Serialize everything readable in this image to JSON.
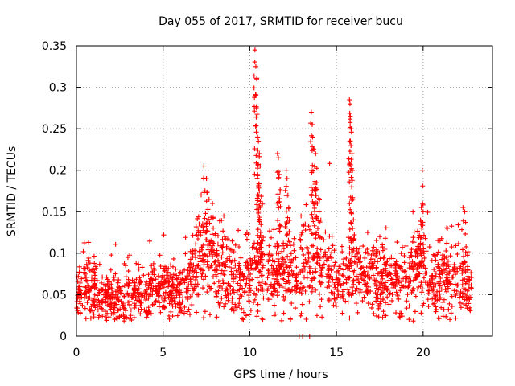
{
  "chart_data": {
    "type": "scatter",
    "title": "Day 055 of 2017, SRMTID for receiver bucu",
    "xlabel": "GPS time / hours",
    "ylabel": "SRMTID / TECUs",
    "xlim": [
      0,
      24
    ],
    "ylim": [
      0,
      0.35
    ],
    "xticks": [
      0,
      5,
      10,
      15,
      20
    ],
    "xtick_labels": [
      "0",
      "5",
      "10",
      "15",
      "20"
    ],
    "yticks": [
      0,
      0.05,
      0.1,
      0.15,
      0.2,
      0.25,
      0.3,
      0.35
    ],
    "ytick_labels": [
      "0",
      "0.05",
      "0.1",
      "0.15",
      "0.2",
      "0.25",
      "0.3",
      "0.35"
    ],
    "grid": true,
    "marker": "plus",
    "color": "#ff0000",
    "series": [
      {
        "name": "SRMTID",
        "band_profile": [
          [
            0.0,
            0.045,
            0.015
          ],
          [
            0.5,
            0.06,
            0.02
          ],
          [
            1.0,
            0.05,
            0.018
          ],
          [
            1.5,
            0.045,
            0.015
          ],
          [
            2.0,
            0.045,
            0.015
          ],
          [
            2.5,
            0.045,
            0.016
          ],
          [
            3.0,
            0.045,
            0.016
          ],
          [
            3.5,
            0.05,
            0.016
          ],
          [
            4.0,
            0.05,
            0.016
          ],
          [
            4.5,
            0.055,
            0.016
          ],
          [
            5.0,
            0.06,
            0.015
          ],
          [
            5.5,
            0.055,
            0.014
          ],
          [
            6.0,
            0.05,
            0.016
          ],
          [
            6.5,
            0.06,
            0.02
          ],
          [
            7.0,
            0.09,
            0.03
          ],
          [
            7.5,
            0.1,
            0.035
          ],
          [
            8.0,
            0.085,
            0.028
          ],
          [
            8.5,
            0.085,
            0.025
          ],
          [
            9.0,
            0.07,
            0.02
          ],
          [
            9.5,
            0.065,
            0.02
          ],
          [
            10.0,
            0.08,
            0.025
          ],
          [
            10.5,
            0.09,
            0.03
          ],
          [
            11.0,
            0.075,
            0.025
          ],
          [
            11.5,
            0.075,
            0.025
          ],
          [
            12.0,
            0.08,
            0.025
          ],
          [
            12.5,
            0.07,
            0.025
          ],
          [
            13.0,
            0.08,
            0.03
          ],
          [
            13.5,
            0.095,
            0.035
          ],
          [
            14.0,
            0.09,
            0.03
          ],
          [
            14.5,
            0.08,
            0.025
          ],
          [
            15.0,
            0.065,
            0.02
          ],
          [
            15.5,
            0.07,
            0.022
          ],
          [
            16.0,
            0.075,
            0.025
          ],
          [
            16.5,
            0.07,
            0.022
          ],
          [
            17.0,
            0.075,
            0.022
          ],
          [
            17.5,
            0.065,
            0.022
          ],
          [
            18.0,
            0.07,
            0.022
          ],
          [
            18.5,
            0.065,
            0.02
          ],
          [
            19.0,
            0.065,
            0.022
          ],
          [
            19.5,
            0.075,
            0.025
          ],
          [
            20.0,
            0.085,
            0.028
          ],
          [
            20.5,
            0.07,
            0.022
          ],
          [
            21.0,
            0.06,
            0.022
          ],
          [
            21.5,
            0.07,
            0.025
          ],
          [
            22.0,
            0.07,
            0.025
          ],
          [
            22.5,
            0.06,
            0.02
          ],
          [
            22.8,
            0.055,
            0.018
          ]
        ],
        "peaks": [
          [
            7.35,
            0.205
          ],
          [
            7.5,
            0.19
          ],
          [
            7.65,
            0.165
          ],
          [
            7.85,
            0.16
          ],
          [
            8.5,
            0.145
          ],
          [
            10.3,
            0.345
          ],
          [
            10.35,
            0.325
          ],
          [
            10.4,
            0.31
          ],
          [
            10.33,
            0.29
          ],
          [
            10.45,
            0.24
          ],
          [
            10.5,
            0.235
          ],
          [
            10.55,
            0.22
          ],
          [
            10.6,
            0.205
          ],
          [
            10.45,
            0.195
          ],
          [
            10.55,
            0.175
          ],
          [
            10.6,
            0.155
          ],
          [
            11.6,
            0.22
          ],
          [
            11.65,
            0.215
          ],
          [
            11.7,
            0.195
          ],
          [
            11.75,
            0.175
          ],
          [
            12.1,
            0.2
          ],
          [
            12.15,
            0.19
          ],
          [
            12.2,
            0.17
          ],
          [
            12.25,
            0.155
          ],
          [
            13.55,
            0.27
          ],
          [
            13.6,
            0.255
          ],
          [
            13.62,
            0.24
          ],
          [
            13.7,
            0.225
          ],
          [
            13.75,
            0.205
          ],
          [
            13.8,
            0.22
          ],
          [
            13.85,
            0.185
          ],
          [
            13.9,
            0.16
          ],
          [
            14.0,
            0.15
          ],
          [
            14.1,
            0.14
          ],
          [
            15.75,
            0.285
          ],
          [
            15.78,
            0.28
          ],
          [
            15.8,
            0.265
          ],
          [
            15.85,
            0.25
          ],
          [
            15.9,
            0.22
          ],
          [
            15.82,
            0.2
          ],
          [
            15.88,
            0.18
          ],
          [
            15.95,
            0.165
          ],
          [
            19.95,
            0.2
          ],
          [
            19.9,
            0.155
          ],
          [
            20.0,
            0.15
          ],
          [
            19.85,
            0.14
          ],
          [
            22.3,
            0.155
          ],
          [
            22.4,
            0.15
          ],
          [
            21.4,
            0.13
          ],
          [
            16.8,
            0.125
          ],
          [
            17.5,
            0.12
          ]
        ],
        "zero_values": [
          [
            12.85,
            0.0
          ],
          [
            13.05,
            0.0
          ],
          [
            13.45,
            0.0
          ]
        ]
      }
    ]
  }
}
